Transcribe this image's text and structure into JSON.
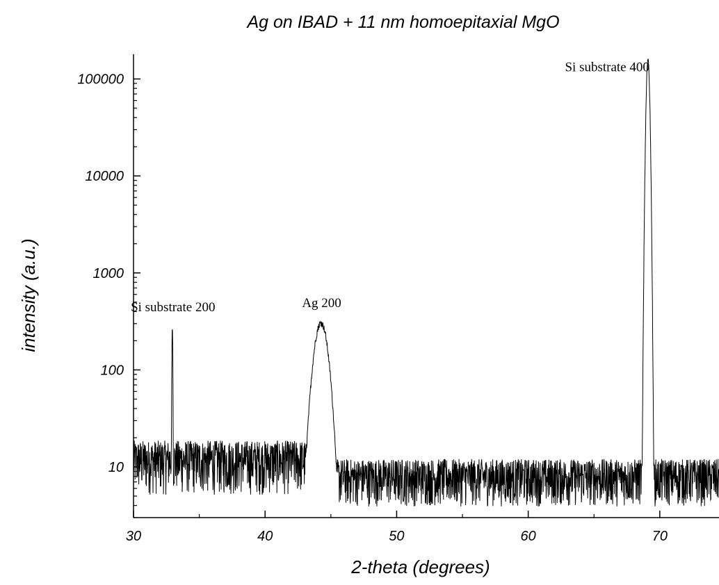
{
  "chart_data": {
    "type": "line",
    "title": "Ag on IBAD + 11 nm homoepitaxial MgO",
    "xlabel": "2-theta (degrees)",
    "ylabel": "intensity (a.u.)",
    "xlim": [
      30,
      74.5
    ],
    "ylim": [
      3,
      180000
    ],
    "yscale": "log",
    "x_ticks": [
      30,
      40,
      50,
      60,
      70
    ],
    "x_tick_labels": [
      "30",
      "40",
      "50",
      "60",
      "70"
    ],
    "y_ticks": [
      10,
      100,
      1000,
      10000,
      100000
    ],
    "y_tick_labels": [
      "10",
      "100",
      "1000",
      "10000",
      "100000"
    ],
    "grid": false,
    "series": [
      {
        "color": "#000000",
        "background_min": 3,
        "background_max": 20,
        "peaks": [
          {
            "center": 32.95,
            "height": 300,
            "width": 0.03
          },
          {
            "center": 44.25,
            "height": 330,
            "width": 0.45
          },
          {
            "center": 69.1,
            "height": 165000,
            "width": 0.1
          }
        ]
      }
    ],
    "annotations": [
      {
        "text": "Si substrate 200",
        "x": 33.0,
        "y": 300
      },
      {
        "text": "Ag 200",
        "x": 44.3,
        "y": 330
      },
      {
        "text": "Si substrate 400",
        "x": 66.0,
        "y": 120000
      }
    ]
  }
}
